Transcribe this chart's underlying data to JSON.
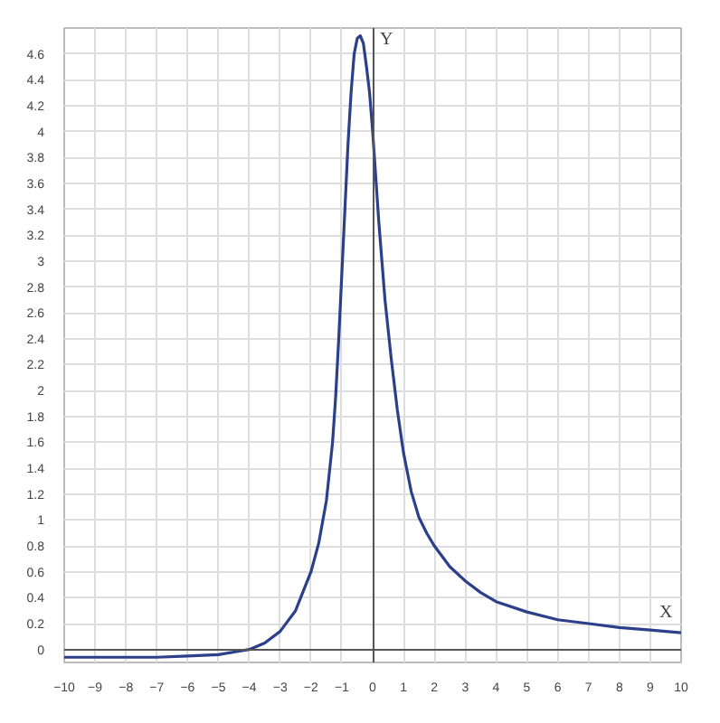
{
  "chart_data": {
    "type": "line",
    "xlabel": "X",
    "ylabel": "Y",
    "xlim": [
      -10,
      10
    ],
    "ylim": [
      -0.1,
      4.8
    ],
    "xticks": [
      -10,
      -9,
      -8,
      -7,
      -6,
      -5,
      -4,
      -3,
      -2,
      -1,
      0,
      1,
      2,
      3,
      4,
      5,
      6,
      7,
      8,
      9,
      10
    ],
    "yticks": [
      0,
      0.2,
      0.4,
      0.6,
      0.8,
      1.0,
      1.2,
      1.4,
      1.6,
      1.8,
      2.0,
      2.2,
      2.4,
      2.6,
      2.8,
      3.0,
      3.2,
      3.4,
      3.6,
      3.8,
      4.0,
      4.2,
      4.4,
      4.6
    ],
    "grid": true,
    "marker": "none",
    "line_style": "solid",
    "series": [
      {
        "color": "#2b3f8a",
        "x": [
          -10,
          -9,
          -8,
          -7,
          -6,
          -5,
          -4.5,
          -4,
          -3.5,
          -3,
          -2.5,
          -2,
          -1.75,
          -1.5,
          -1.3,
          -1.2,
          -1.1,
          -1,
          -0.9,
          -0.8,
          -0.7,
          -0.6,
          -0.5,
          -0.4,
          -0.3,
          -0.2,
          -0.1,
          0,
          0.2,
          0.4,
          0.6,
          0.8,
          1,
          1.25,
          1.5,
          1.75,
          2,
          2.5,
          3,
          3.5,
          4,
          5,
          6,
          7,
          8,
          9,
          10
        ],
        "values": [
          -0.06,
          -0.06,
          -0.06,
          -0.06,
          -0.05,
          -0.04,
          -0.02,
          0.0,
          0.05,
          0.14,
          0.3,
          0.6,
          0.82,
          1.15,
          1.6,
          1.95,
          2.4,
          2.9,
          3.4,
          3.9,
          4.3,
          4.6,
          4.72,
          4.74,
          4.68,
          4.5,
          4.3,
          4.0,
          3.3,
          2.7,
          2.25,
          1.85,
          1.52,
          1.22,
          1.02,
          0.9,
          0.8,
          0.64,
          0.53,
          0.44,
          0.37,
          0.29,
          0.23,
          0.2,
          0.17,
          0.15,
          0.13
        ]
      }
    ]
  }
}
